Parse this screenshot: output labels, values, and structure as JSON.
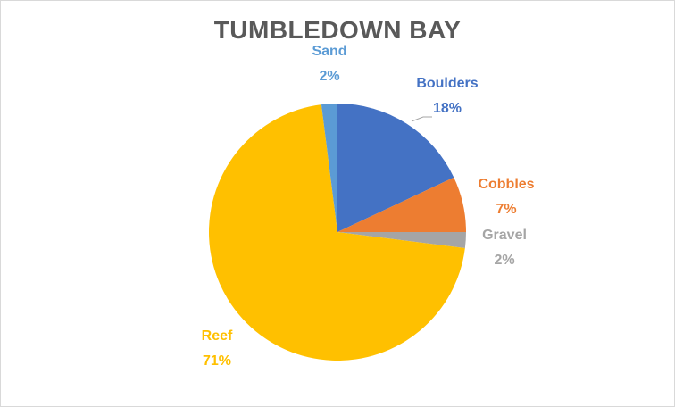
{
  "chart_data": {
    "type": "pie",
    "title": "TUMBLEDOWN BAY",
    "slices": [
      {
        "label": "Boulders",
        "value": 18,
        "value_label": "18%",
        "color": "#4472C4"
      },
      {
        "label": "Cobbles",
        "value": 7,
        "value_label": "7%",
        "color": "#ED7D31"
      },
      {
        "label": "Gravel",
        "value": 2,
        "value_label": "2%",
        "color": "#A5A5A5"
      },
      {
        "label": "Reef",
        "value": 71,
        "value_label": "71%",
        "color": "#FFC000"
      },
      {
        "label": "Sand",
        "value": 2,
        "value_label": "2%",
        "color": "#5B9BD5"
      }
    ],
    "legend": "none",
    "data_labels": "outside, category name and percentage"
  }
}
